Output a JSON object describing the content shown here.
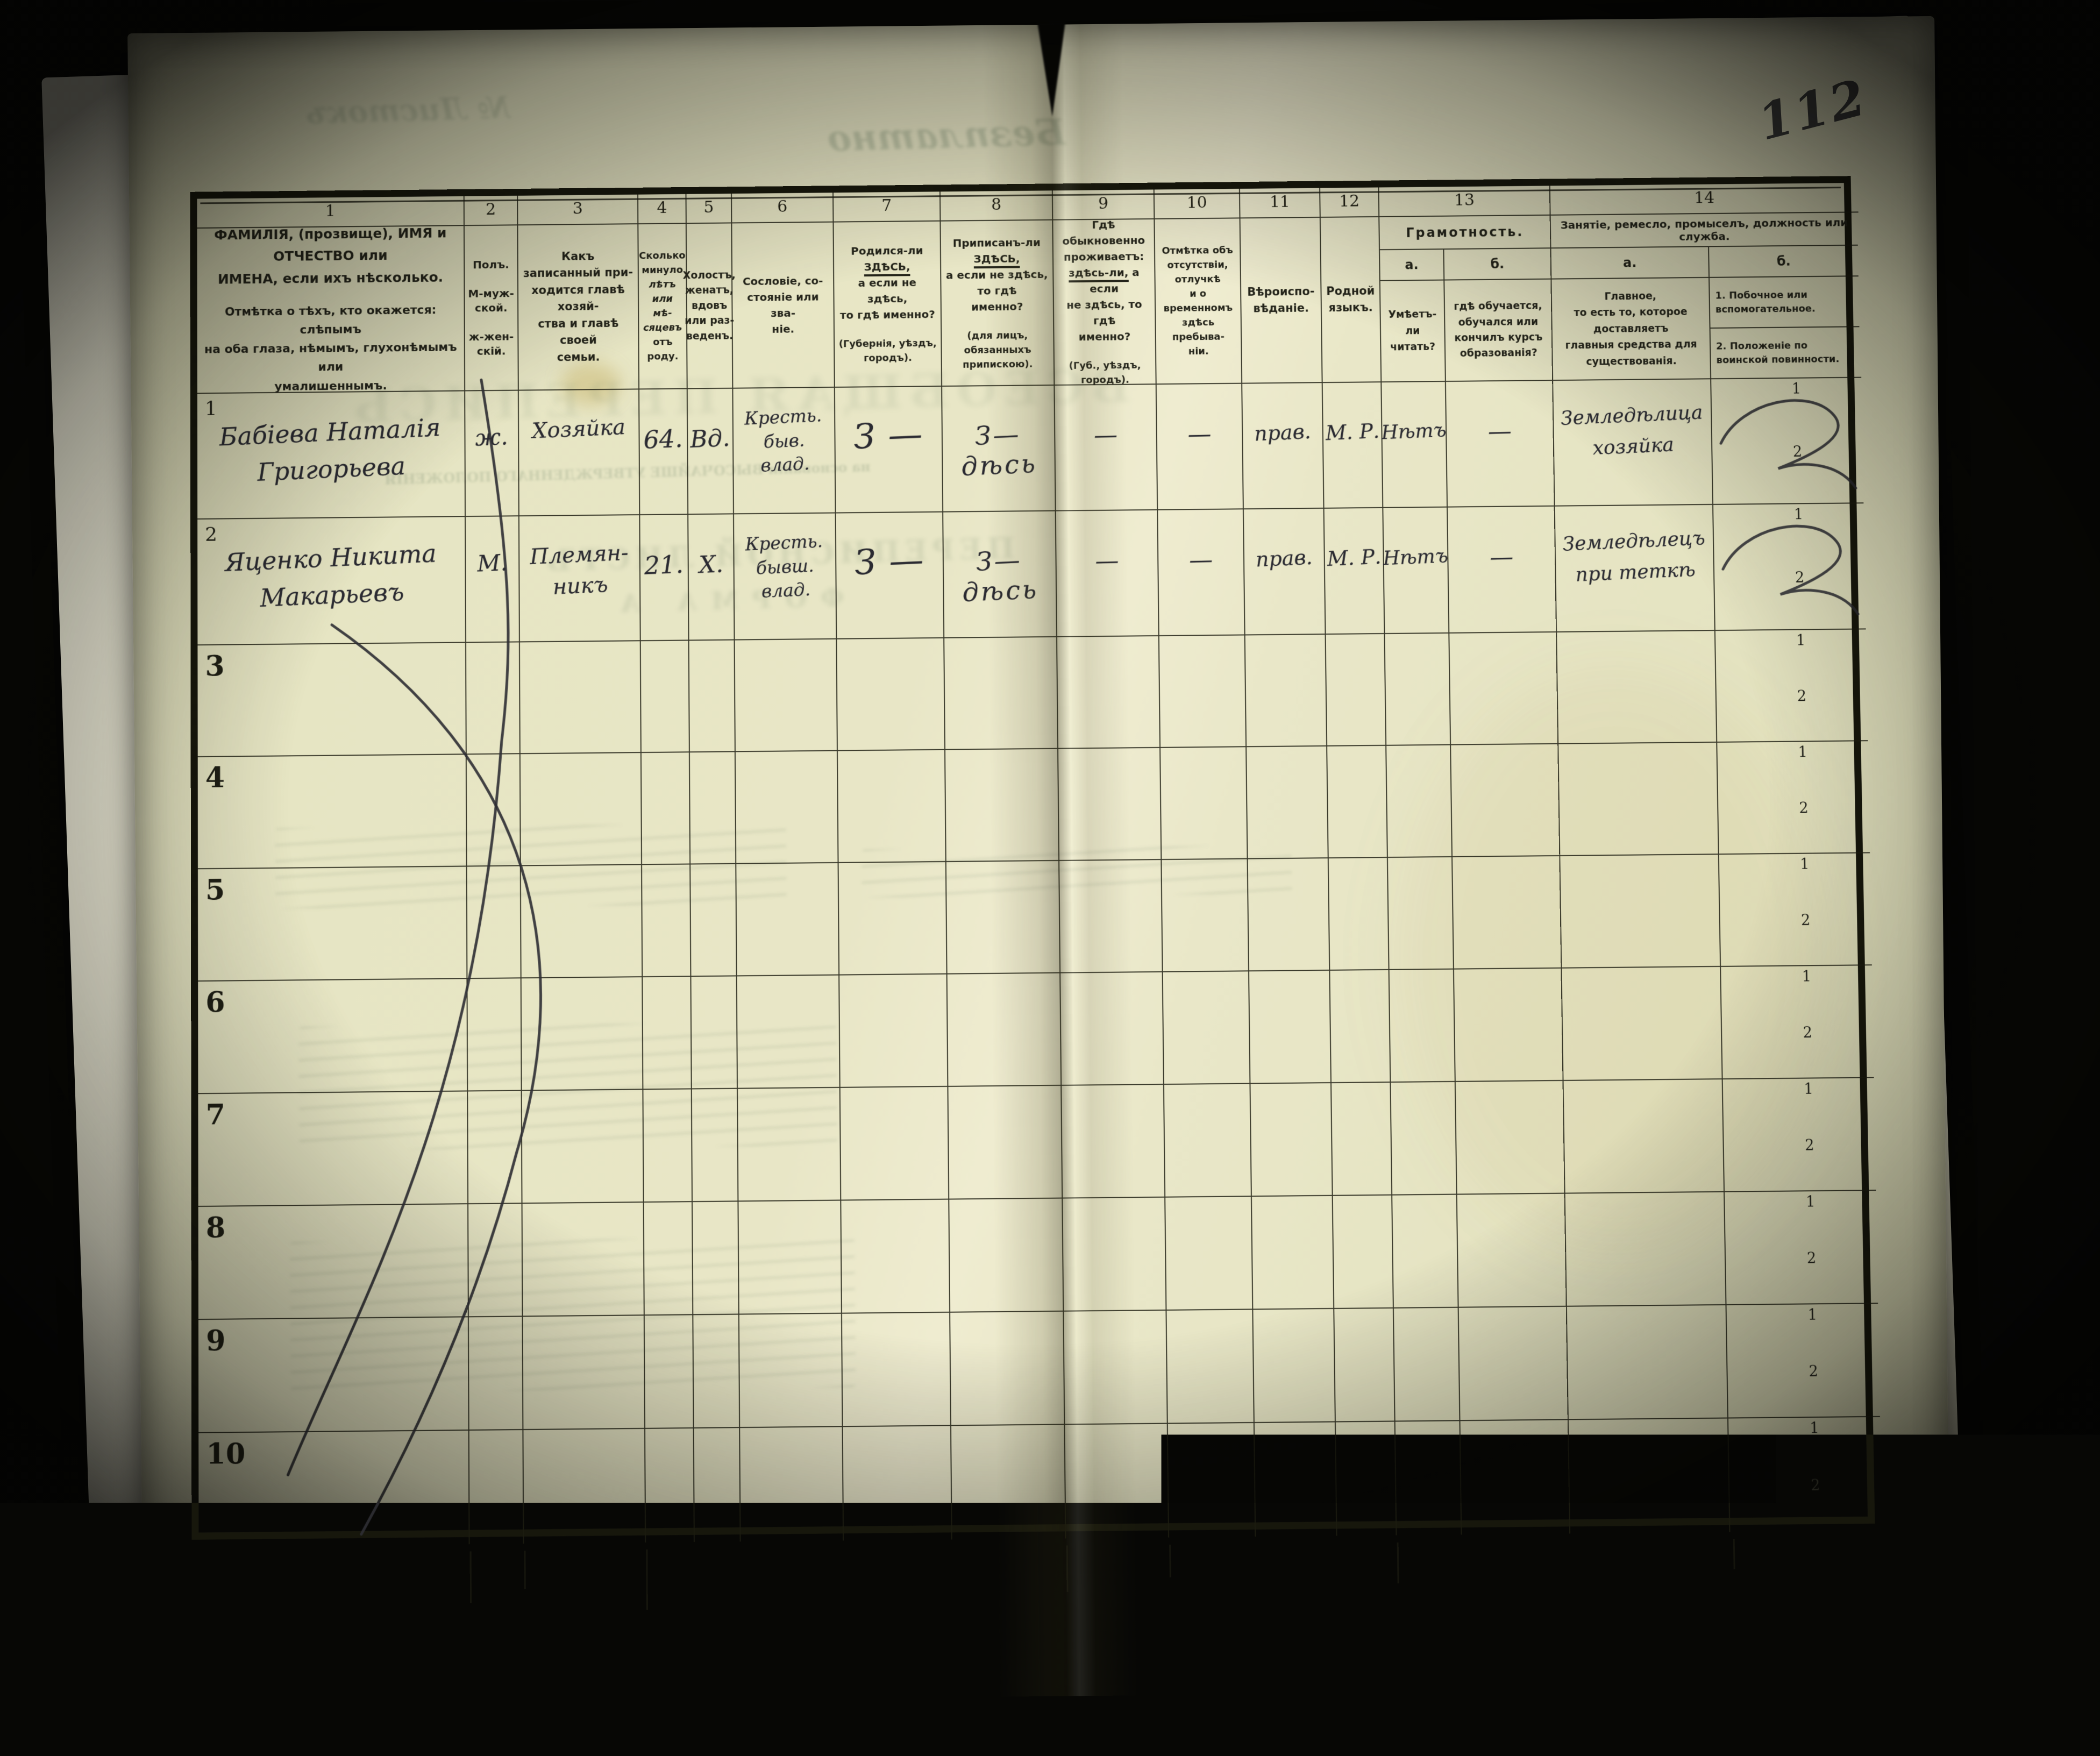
{
  "colors": {
    "background": "#070705",
    "paper": "#e7e5c4",
    "ink": "#24241a",
    "handwriting": "#2a2a31",
    "ghost": "#6f8468"
  },
  "page_number": "112",
  "subrow_labels": [
    "1",
    "2"
  ],
  "ghosts": {
    "bezplatno": "Безплатно",
    "listok": "№ Листокъ",
    "perepis": "ВСЕОБЩАЯ ПЕРЕПИСЬ",
    "form_title": "ПЕРЕПИСНОЙ ЛИСТЪ",
    "form_a": "ФОРМА А",
    "osnova": "на основаніи ВЫСОЧАЙШЕ УТВЕРЖДЕННАГО ПОЛОЖЕНІЯ"
  },
  "columns": [
    {
      "num": "1",
      "p1": "ФАМИЛІЯ, (прозвище), ИМЯ и ОТЧЕСТВО или\nИМЕНА, если ихъ нѣсколько.",
      "p2": "Отмѣтка о тѣхъ, кто окажется: слѣпымъ\nна оба глаза, нѣмымъ, глухонѣмымъ или\nумалишеннымъ."
    },
    {
      "num": "2",
      "text": "Полъ.\n\nМ-муж-\nской.\n\nж-жен-\nскій."
    },
    {
      "num": "3",
      "text": "Какъ записанный при-\nходится главѣ хозяй-\nства и главѣ своей\nсемьи."
    },
    {
      "num": "4",
      "t1": "Сколько\nминуло",
      "t2": "лѣтъ\nили мѣ-\nсяцевъ",
      "t3": "отъ роду."
    },
    {
      "num": "5",
      "text": "Холостъ,\nженатъ,\nвдовъ\nили раз-\nведенъ."
    },
    {
      "num": "6",
      "text": "Сословіе, со-\nстояніе или зва-\nніе."
    },
    {
      "num": "7",
      "pre": "Родился-ли ",
      "here": "ЗДѢСЬ,",
      "mid": "\nа если не здѣсь,\nто гдѣ именно?",
      "post": "(Губернія, уѣздъ, городъ)."
    },
    {
      "num": "8",
      "pre": "Приписанъ-ли ",
      "here": "ЗДѢСЬ,",
      "mid": "\nа если не здѣсь, то гдѣ\nименно?",
      "post": "(для лицъ, обязанныхъ\nприпискою)."
    },
    {
      "num": "9",
      "pre": "Гдѣ обыкновенно\nпроживаетъ:\n",
      "here": "здѣсь-ли,",
      "mid": " а если\nне здѣсь, то гдѣ\nименно?",
      "post": "(Губ., уѣздъ, городъ)."
    },
    {
      "num": "10",
      "text": "Отмѣтка объ\nотсутствіи, отлучкѣ\nи о временномъ\nздѣсь пребыва-\nніи."
    },
    {
      "num": "11",
      "text": "Вѣроиспо-\nвѣданіе."
    },
    {
      "num": "12",
      "text": "Родной\nязыкъ."
    },
    {
      "num": "13",
      "title": "Грамотность.",
      "a_label": "а.",
      "b_label": "б.",
      "a_text": "Умѣетъ-\nли\nчитать?",
      "b_text": "гдѣ обучается,\nобучался или\nкончилъ курсъ\nобразованія?"
    },
    {
      "num": "14",
      "title": "Занятіе, ремесло, промыселъ, должность или служба.",
      "a_label": "а.",
      "b_label": "б.",
      "a_text": "Главное,\nто есть то, которое доставляетъ\nглавныя средства для существованія.",
      "b1": "1. Побочное или вспомогательное.",
      "b2": "2. Положеніе по воинской повинности."
    }
  ],
  "rows": [
    {
      "n": "1",
      "c1": "Бабіева Наталія\nГригорьева",
      "c2": "ж.",
      "c3": "Хозяйка",
      "c4": "64.",
      "c5": "Вд.",
      "c6": "Кресть.\nбыв.\nвлад.",
      "c7": "З —",
      "c8": "З—дѣсь",
      "c9": "—",
      "c10": "—",
      "c11": "прав.",
      "c12": "М. Р.",
      "c13a": "Нѣтъ",
      "c13b": "—",
      "c14a": "Земледѣлица\nхозяйка",
      "c14b": "swash"
    },
    {
      "n": "2",
      "c1": "Яценко Никита\nМакарьевъ",
      "c2": "М.",
      "c3": "Племян-\nникъ",
      "c4": "21.",
      "c5": "Х.",
      "c6": "Кресть.\nбывш.\nвлад.",
      "c7": "З —",
      "c8": "З—дѣсь",
      "c9": "—",
      "c10": "—",
      "c11": "прав.",
      "c12": "М. Р.",
      "c13a": "Нѣтъ",
      "c13b": "—",
      "c14a": "Земледѣлецъ\nпри теткѣ",
      "c14b": "swash"
    },
    {
      "n": "3"
    },
    {
      "n": "4"
    },
    {
      "n": "5"
    },
    {
      "n": "6"
    },
    {
      "n": "7"
    },
    {
      "n": "8"
    },
    {
      "n": "9"
    },
    {
      "n": "10"
    }
  ]
}
